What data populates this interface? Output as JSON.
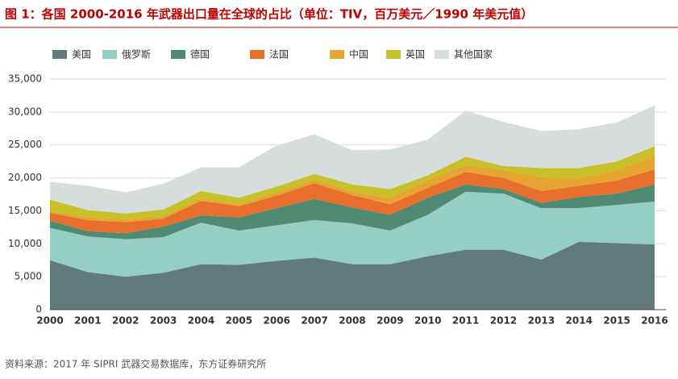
{
  "chart_data": {
    "type": "stacked-area",
    "title": "图 1：各国 2000-2016 年武器出口量在全球的占比（单位：TIV，百万美元／1990 年美元值）",
    "source": "资料来源：2017 年 SIPRI 武器交易数据库，东方证券研究所",
    "categories": [
      "2000",
      "2001",
      "2002",
      "2003",
      "2004",
      "2005",
      "2006",
      "2007",
      "2008",
      "2009",
      "2010",
      "2011",
      "2012",
      "2013",
      "2014",
      "2015",
      "2016"
    ],
    "series": [
      {
        "name": "美国",
        "color": "#627a7a",
        "values": [
          7500,
          5700,
          5000,
          5600,
          6900,
          6800,
          7400,
          7900,
          6900,
          6900,
          8100,
          9100,
          9100,
          7600,
          10300,
          10100,
          9900
        ]
      },
      {
        "name": "俄罗斯",
        "color": "#93cfc3",
        "values": [
          4900,
          5400,
          5700,
          5400,
          6300,
          5200,
          5400,
          5700,
          6200,
          5100,
          6300,
          8800,
          8500,
          7800,
          5100,
          5800,
          6500
        ]
      },
      {
        "name": "德国",
        "color": "#4f8a73",
        "values": [
          1100,
          800,
          900,
          1600,
          1100,
          2000,
          2600,
          3200,
          2400,
          2400,
          2600,
          1100,
          700,
          800,
          1700,
          1700,
          2600
        ]
      },
      {
        "name": "法国",
        "color": "#e86e2b",
        "values": [
          1200,
          1700,
          1700,
          1200,
          2200,
          1700,
          1900,
          2400,
          1900,
          1600,
          1500,
          1900,
          1700,
          1800,
          1700,
          2000,
          2300
        ]
      },
      {
        "name": "中国",
        "color": "#e6a531",
        "values": [
          300,
          400,
          400,
          400,
          400,
          300,
          500,
          500,
          500,
          1000,
          1200,
          1100,
          1200,
          2100,
          1100,
          1600,
          2000
        ]
      },
      {
        "name": "英国",
        "color": "#c6c128",
        "values": [
          1700,
          1100,
          900,
          1000,
          1100,
          1000,
          900,
          900,
          1100,
          1300,
          700,
          1200,
          600,
          1400,
          1600,
          1300,
          1500
        ]
      },
      {
        "name": "其他国家",
        "color": "#d7dcdc",
        "values": [
          2700,
          3700,
          3200,
          3900,
          3600,
          4600,
          6200,
          6000,
          5200,
          6000,
          5400,
          7000,
          6700,
          5600,
          5900,
          5900,
          6200
        ]
      }
    ],
    "ylim": [
      0,
      35000
    ],
    "yticks": [
      0,
      {
        "value": 5000,
        "label": "5,000"
      },
      {
        "value": 10000,
        "label": "10,000"
      },
      {
        "value": 15000,
        "label": "15,000"
      },
      {
        "value": 20000,
        "label": "20,000"
      },
      {
        "value": 25000,
        "label": "25,000"
      },
      {
        "value": 30000,
        "label": "30,000"
      },
      {
        "value": 35000,
        "label": "35,000"
      }
    ],
    "grid": true
  }
}
